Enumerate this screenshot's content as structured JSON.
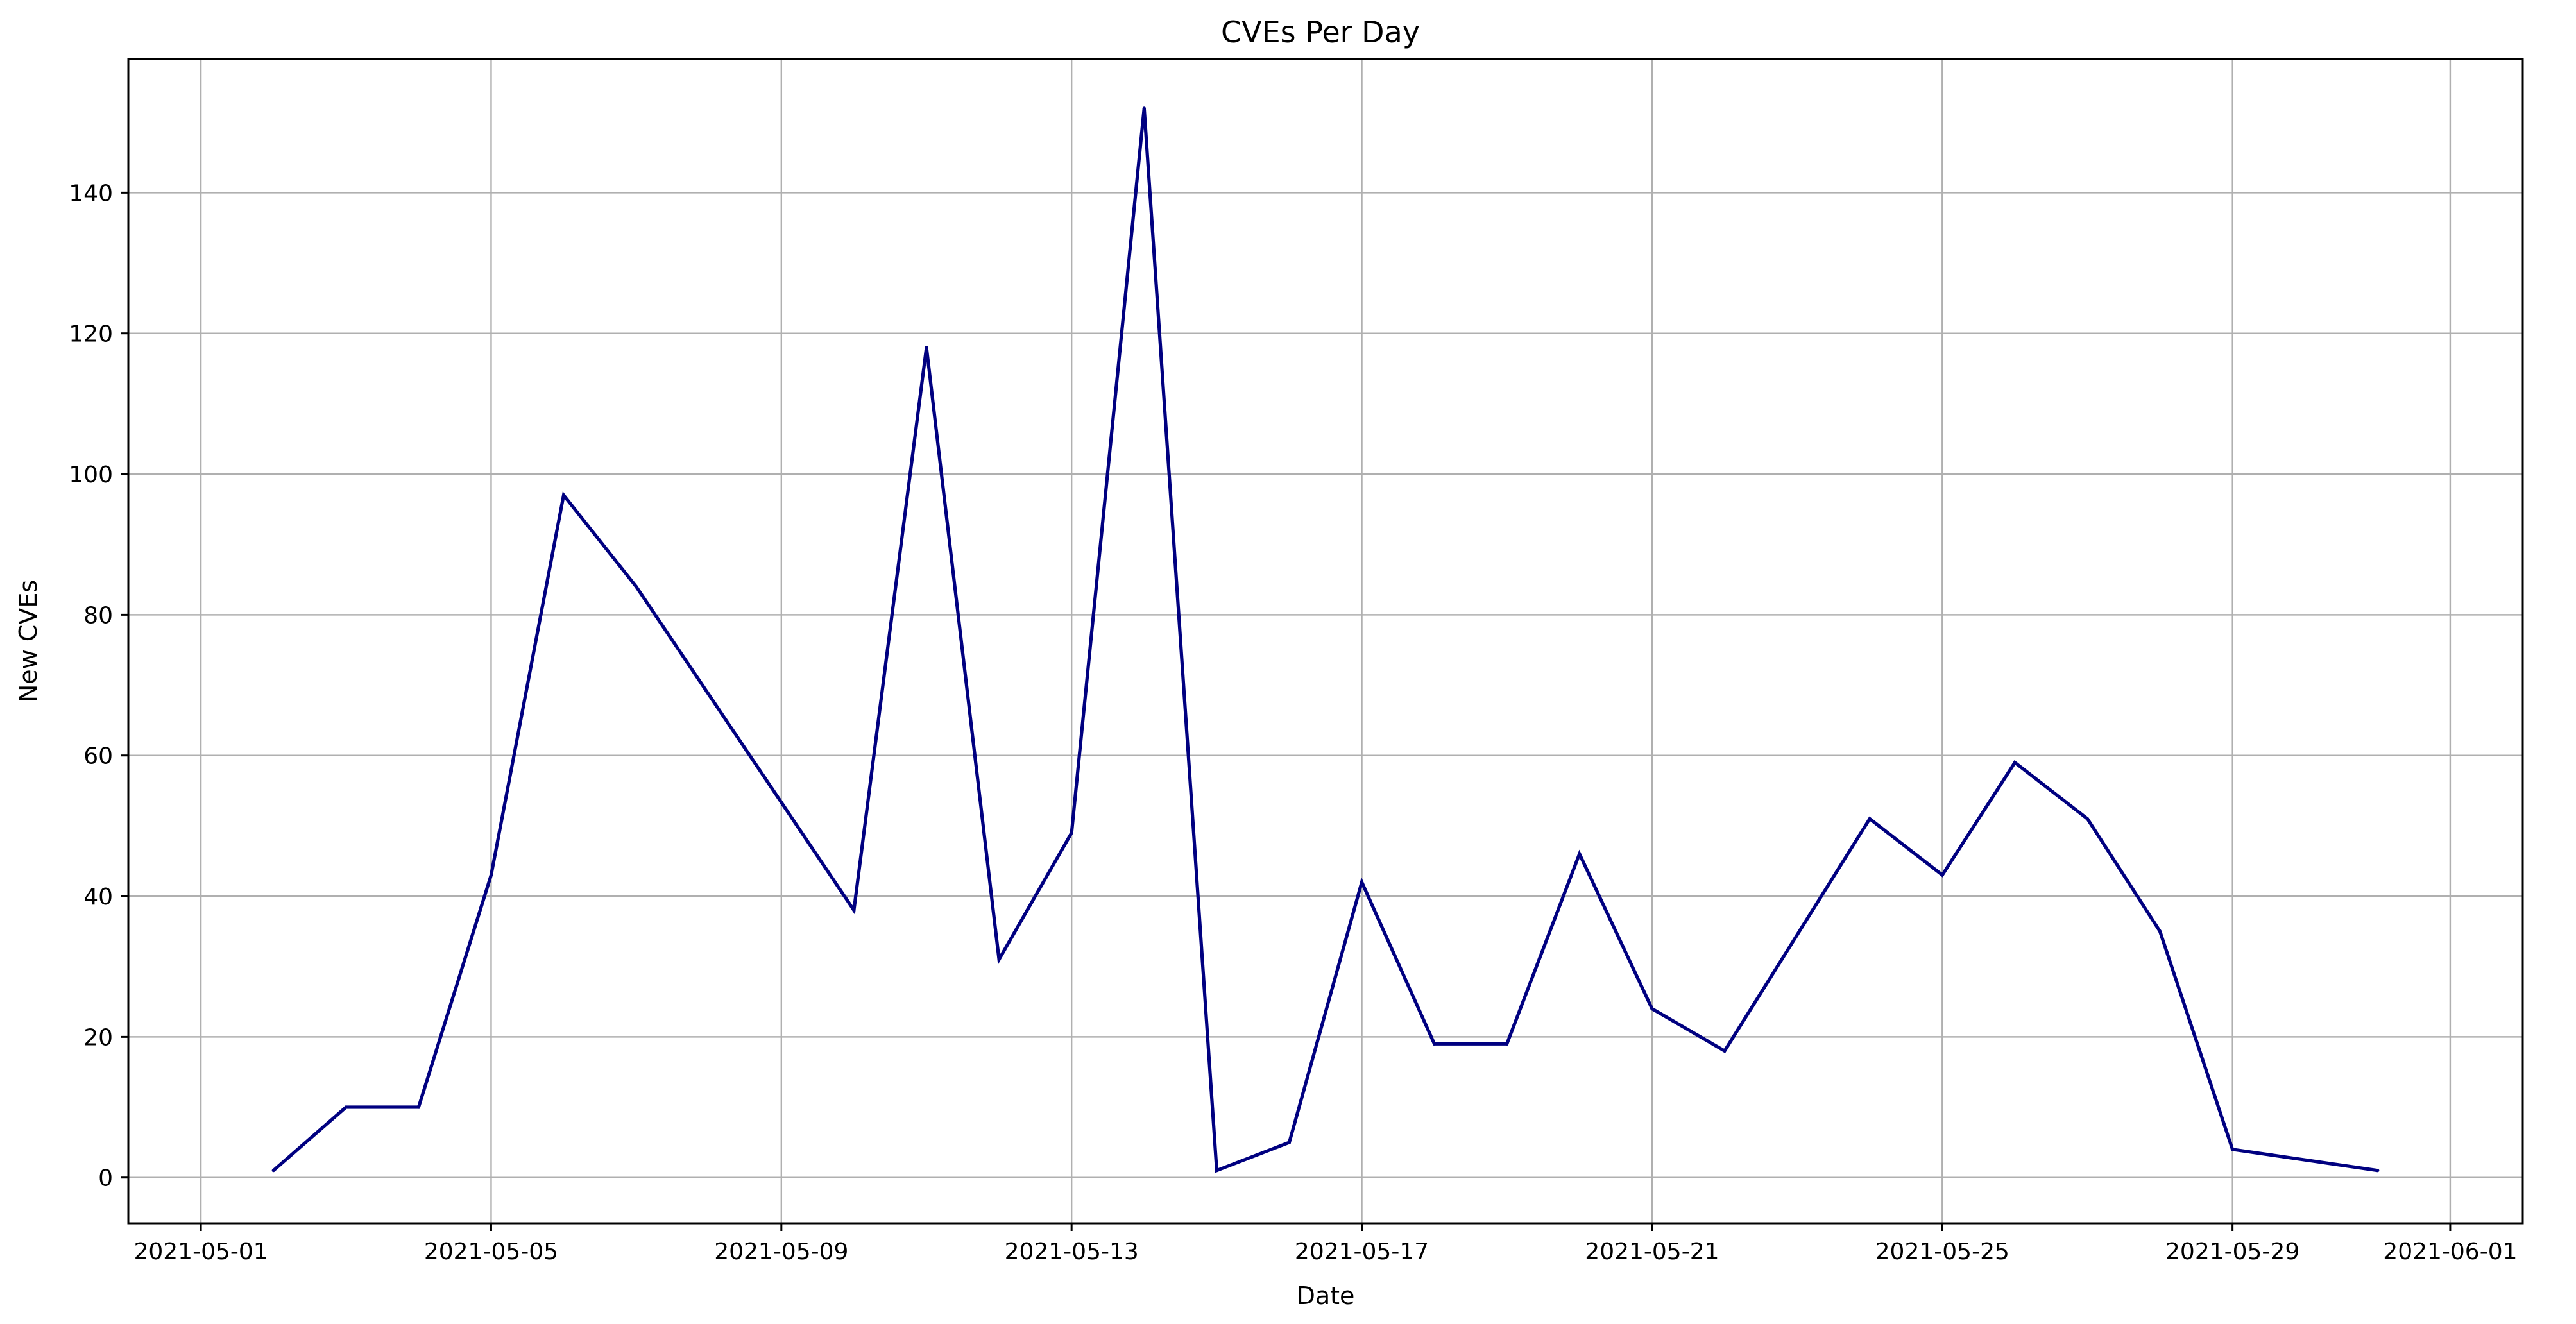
{
  "chart_data": {
    "type": "line",
    "title": "CVEs Per Day",
    "xlabel": "Date",
    "ylabel": "New CVEs",
    "grid": true,
    "line_color": "#000080",
    "x_range": [
      "2021-04-30",
      "2021-06-02"
    ],
    "y_range": [
      -6.5,
      159
    ],
    "x_ticks": [
      "2021-05-01",
      "2021-05-05",
      "2021-05-09",
      "2021-05-13",
      "2021-05-17",
      "2021-05-21",
      "2021-05-25",
      "2021-05-29",
      "2021-06-01"
    ],
    "y_ticks": [
      0,
      20,
      40,
      60,
      80,
      100,
      120,
      140
    ],
    "series": [
      {
        "x": [
          "2021-05-02",
          "2021-05-03",
          "2021-05-04",
          "2021-05-05",
          "2021-05-06",
          "2021-05-07",
          "2021-05-10",
          "2021-05-11",
          "2021-05-12",
          "2021-05-13",
          "2021-05-14",
          "2021-05-15",
          "2021-05-16",
          "2021-05-17",
          "2021-05-18",
          "2021-05-19",
          "2021-05-20",
          "2021-05-21",
          "2021-05-22",
          "2021-05-24",
          "2021-05-25",
          "2021-05-26",
          "2021-05-27",
          "2021-05-28",
          "2021-05-29",
          "2021-05-31"
        ],
        "values": [
          1,
          10,
          10,
          43,
          97,
          84,
          38,
          118,
          31,
          49,
          152,
          1,
          5,
          42,
          19,
          19,
          46,
          24,
          18,
          51,
          43,
          59,
          51,
          35,
          4,
          1
        ]
      }
    ]
  }
}
